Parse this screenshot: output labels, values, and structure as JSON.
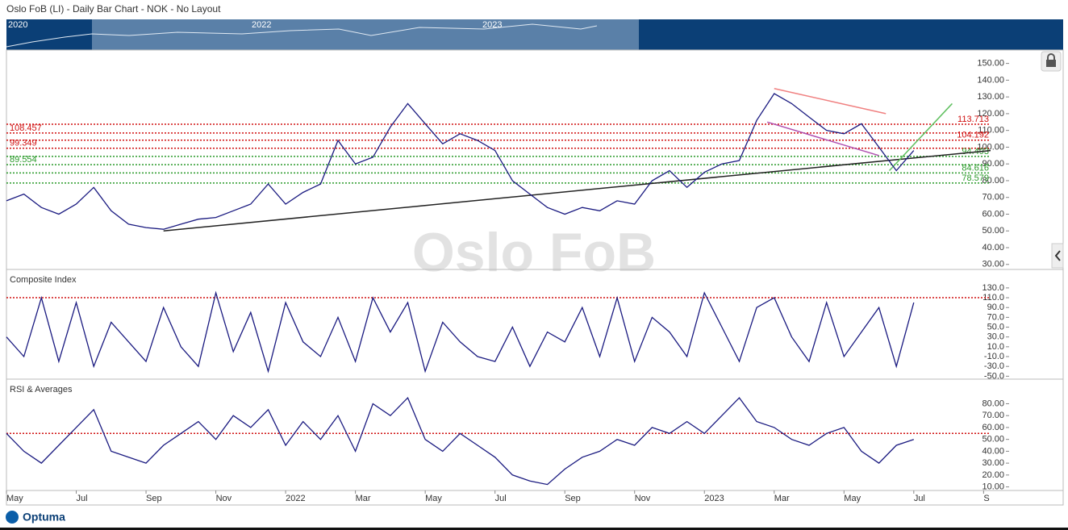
{
  "header": {
    "title": "Oslo FoB (LI) - Daily Bar Chart - NOK - No Layout",
    "watermark": "Oslo FoB",
    "logo": "Optuma"
  },
  "navigator": {
    "labels": [
      "2020",
      "2022",
      "2023"
    ]
  },
  "chart_data": [
    {
      "type": "line",
      "color": "#1a1a80",
      "x": [
        0,
        0.5,
        1,
        1.5,
        2,
        2.5,
        3,
        3.5,
        4,
        4.5,
        5,
        5.5,
        6,
        6.5,
        7,
        7.5,
        8,
        8.5,
        9,
        9.5,
        10,
        10.5,
        11,
        11.5,
        12,
        12.5,
        13,
        13.5,
        14,
        14.5,
        15,
        15.5,
        16,
        16.5,
        17,
        17.5,
        18,
        18.5,
        19,
        19.5,
        20,
        20.5,
        21,
        21.5,
        22,
        22.5,
        23,
        23.5,
        24,
        24.5,
        25,
        25.5,
        26
      ],
      "values": [
        68,
        72,
        64,
        60,
        66,
        76,
        62,
        54,
        52,
        51,
        54,
        57,
        58,
        62,
        66,
        78,
        66,
        73,
        78,
        104,
        90,
        94,
        112,
        126,
        114,
        102,
        108,
        104,
        98,
        80,
        72,
        64,
        60,
        64,
        62,
        68,
        66,
        80,
        86,
        76,
        85,
        90,
        92,
        116,
        132,
        126,
        118,
        110,
        108,
        114,
        100,
        86,
        98
      ],
      "xlim": [
        0,
        28.2
      ],
      "xticks": [
        {
          "value": 0,
          "label": "May"
        },
        {
          "value": 2,
          "label": "Jul"
        },
        {
          "value": 4,
          "label": "Sep"
        },
        {
          "value": 6,
          "label": "Nov"
        },
        {
          "value": 8,
          "label": "2022"
        },
        {
          "value": 10,
          "label": "Mar"
        },
        {
          "value": 12,
          "label": "May"
        },
        {
          "value": 14,
          "label": "Jul"
        },
        {
          "value": 16,
          "label": "Sep"
        },
        {
          "value": 18,
          "label": "Nov"
        },
        {
          "value": 20,
          "label": "2023"
        },
        {
          "value": 22,
          "label": "Mar"
        },
        {
          "value": 24,
          "label": "May"
        },
        {
          "value": 26,
          "label": "Jul"
        },
        {
          "value": 28,
          "label": "S"
        }
      ],
      "ylim": [
        27,
        158
      ],
      "yticks": [
        {
          "value": 30,
          "label": "30.00"
        },
        {
          "value": 40,
          "label": "40.00"
        },
        {
          "value": 50,
          "label": "50.00"
        },
        {
          "value": 60,
          "label": "60.00"
        },
        {
          "value": 70,
          "label": "70.00"
        },
        {
          "value": 80,
          "label": "80.00"
        },
        {
          "value": 90,
          "label": "90.00"
        },
        {
          "value": 100,
          "label": "100.00"
        },
        {
          "value": 110,
          "label": "110.00"
        },
        {
          "value": 120,
          "label": "120.00"
        },
        {
          "value": 130,
          "label": "130.00"
        },
        {
          "value": 140,
          "label": "140.00"
        },
        {
          "value": 150,
          "label": "150.00"
        }
      ],
      "levels": [
        {
          "value": 113.713,
          "color": "#d01010"
        },
        {
          "value": 108.457,
          "color": "#d01010"
        },
        {
          "value": 104.192,
          "color": "#d01010"
        },
        {
          "value": 99.349,
          "color": "#d01010"
        },
        {
          "value": 94.493,
          "color": "#2a9a2a"
        },
        {
          "value": 89.554,
          "color": "#2a9a2a"
        },
        {
          "value": 84.616,
          "color": "#2a9a2a"
        },
        {
          "value": 78.579,
          "color": "#2a9a2a"
        }
      ],
      "trendlines": [
        {
          "x": [
            4.5,
            28.2
          ],
          "y": [
            50,
            98
          ],
          "color": "#222222"
        },
        {
          "x": [
            22,
            25.2
          ],
          "y": [
            135,
            120
          ],
          "color": "#f08080"
        },
        {
          "x": [
            21.8,
            25
          ],
          "y": [
            115,
            95
          ],
          "color": "#b050b0"
        },
        {
          "x": [
            25.3,
            27.1
          ],
          "y": [
            86,
            126
          ],
          "color": "#60c060"
        }
      ]
    },
    {
      "type": "line",
      "title": "Composite Index",
      "color": "#1a1a80",
      "x": [
        0,
        0.5,
        1,
        1.5,
        2,
        2.5,
        3,
        3.5,
        4,
        4.5,
        5,
        5.5,
        6,
        6.5,
        7,
        7.5,
        8,
        8.5,
        9,
        9.5,
        10,
        10.5,
        11,
        11.5,
        12,
        12.5,
        13,
        13.5,
        14,
        14.5,
        15,
        15.5,
        16,
        16.5,
        17,
        17.5,
        18,
        18.5,
        19,
        19.5,
        20,
        20.5,
        21,
        21.5,
        22,
        22.5,
        23,
        23.5,
        24,
        24.5,
        25,
        25.5,
        26
      ],
      "values": [
        30,
        -10,
        110,
        -20,
        100,
        -30,
        60,
        20,
        -20,
        90,
        10,
        -30,
        120,
        0,
        80,
        -40,
        100,
        20,
        -10,
        70,
        -20,
        110,
        40,
        100,
        -40,
        60,
        20,
        -10,
        -20,
        50,
        -30,
        40,
        20,
        90,
        -10,
        110,
        -20,
        70,
        40,
        -10,
        120,
        50,
        -20,
        90,
        110,
        30,
        -20,
        100,
        -10,
        40,
        90,
        -30,
        100
      ],
      "ylim": [
        -56,
        166
      ],
      "yticks": [
        {
          "value": 130,
          "label": "130.0"
        },
        {
          "value": 110,
          "label": "110.0"
        },
        {
          "value": 90,
          "label": "90.0"
        },
        {
          "value": 70,
          "label": "70.0"
        },
        {
          "value": 50,
          "label": "50.0"
        },
        {
          "value": 30,
          "label": "30.0"
        },
        {
          "value": 10,
          "label": "10.0"
        },
        {
          "value": -10,
          "label": "-10.0"
        },
        {
          "value": -30,
          "label": "-30.0"
        },
        {
          "value": -50,
          "label": "-50.0"
        }
      ],
      "levels": [
        {
          "value": 110,
          "color": "#d01010"
        }
      ]
    },
    {
      "type": "line",
      "title": "RSI & Averages",
      "color": "#1a1a80",
      "x": [
        0,
        0.5,
        1,
        1.5,
        2,
        2.5,
        3,
        3.5,
        4,
        4.5,
        5,
        5.5,
        6,
        6.5,
        7,
        7.5,
        8,
        8.5,
        9,
        9.5,
        10,
        10.5,
        11,
        11.5,
        12,
        12.5,
        13,
        13.5,
        14,
        14.5,
        15,
        15.5,
        16,
        16.5,
        17,
        17.5,
        18,
        18.5,
        19,
        19.5,
        20,
        20.5,
        21,
        21.5,
        22,
        22.5,
        23,
        23.5,
        24,
        24.5,
        25,
        25.5,
        26
      ],
      "values": [
        55,
        40,
        30,
        45,
        60,
        75,
        40,
        35,
        30,
        45,
        55,
        65,
        50,
        70,
        60,
        75,
        45,
        65,
        50,
        70,
        40,
        80,
        70,
        85,
        50,
        40,
        55,
        45,
        35,
        20,
        15,
        12,
        25,
        35,
        40,
        50,
        45,
        60,
        55,
        65,
        55,
        70,
        85,
        65,
        60,
        50,
        45,
        55,
        60,
        40,
        30,
        45,
        50
      ],
      "ylim": [
        7,
        100
      ],
      "yticks": [
        {
          "value": 80,
          "label": "80.00"
        },
        {
          "value": 70,
          "label": "70.00"
        },
        {
          "value": 60,
          "label": "60.00"
        },
        {
          "value": 50,
          "label": "50.00"
        },
        {
          "value": 40,
          "label": "40.00"
        },
        {
          "value": 30,
          "label": "30.00"
        },
        {
          "value": 20,
          "label": "20.00"
        },
        {
          "value": 10,
          "label": "10.00"
        }
      ],
      "levels": [
        {
          "value": 55,
          "color": "#d01010"
        }
      ]
    }
  ]
}
